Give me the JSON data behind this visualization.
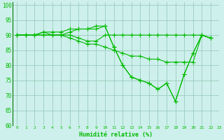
{
  "xlabel": "Humidité relative (%)",
  "xlim": [
    -0.5,
    23
  ],
  "ylim": [
    60,
    101
  ],
  "yticks": [
    60,
    65,
    70,
    75,
    80,
    85,
    90,
    95,
    100
  ],
  "xticks": [
    0,
    1,
    2,
    3,
    4,
    5,
    6,
    7,
    8,
    9,
    10,
    11,
    12,
    13,
    14,
    15,
    16,
    17,
    18,
    19,
    20,
    21,
    22,
    23
  ],
  "bg_color": "#cef0ec",
  "line_color": "#00bb00",
  "grid_color": "#99ccbb",
  "lines": [
    {
      "x": [
        0,
        1,
        2,
        3,
        4,
        5,
        6,
        7,
        8,
        9,
        10,
        11,
        12,
        13,
        14,
        15,
        16,
        17,
        18,
        19,
        20,
        21,
        22
      ],
      "y": [
        90,
        90,
        90,
        91,
        91,
        91,
        92,
        92,
        92,
        93,
        93,
        86,
        80,
        76,
        75,
        74,
        72,
        74,
        68,
        77,
        84,
        90,
        89
      ]
    },
    {
      "x": [
        0,
        1,
        2,
        3,
        4,
        5,
        6,
        7,
        8,
        9,
        10,
        11,
        12,
        13,
        14,
        15,
        16,
        17,
        18,
        19,
        20,
        21,
        22
      ],
      "y": [
        90,
        90,
        90,
        91,
        90,
        90,
        91,
        92,
        92,
        92,
        93,
        86,
        80,
        76,
        75,
        74,
        72,
        74,
        68,
        77,
        84,
        90,
        89
      ]
    },
    {
      "x": [
        0,
        1,
        2,
        3,
        4,
        5,
        6,
        7,
        8,
        9,
        10,
        11,
        12,
        13,
        14,
        15,
        16,
        17,
        18,
        19,
        20,
        21,
        22
      ],
      "y": [
        90,
        90,
        90,
        90,
        90,
        90,
        89,
        88,
        87,
        87,
        86,
        85,
        84,
        83,
        83,
        82,
        82,
        81,
        81,
        81,
        81,
        90,
        89
      ]
    },
    {
      "x": [
        0,
        1,
        2,
        3,
        4,
        5,
        6,
        7,
        8,
        9,
        10,
        11,
        12,
        13,
        14,
        15,
        16,
        17,
        18,
        19,
        20,
        21,
        22
      ],
      "y": [
        90,
        90,
        90,
        90,
        90,
        90,
        90,
        89,
        88,
        88,
        90,
        90,
        90,
        90,
        90,
        90,
        90,
        90,
        90,
        90,
        90,
        90,
        89
      ]
    }
  ]
}
